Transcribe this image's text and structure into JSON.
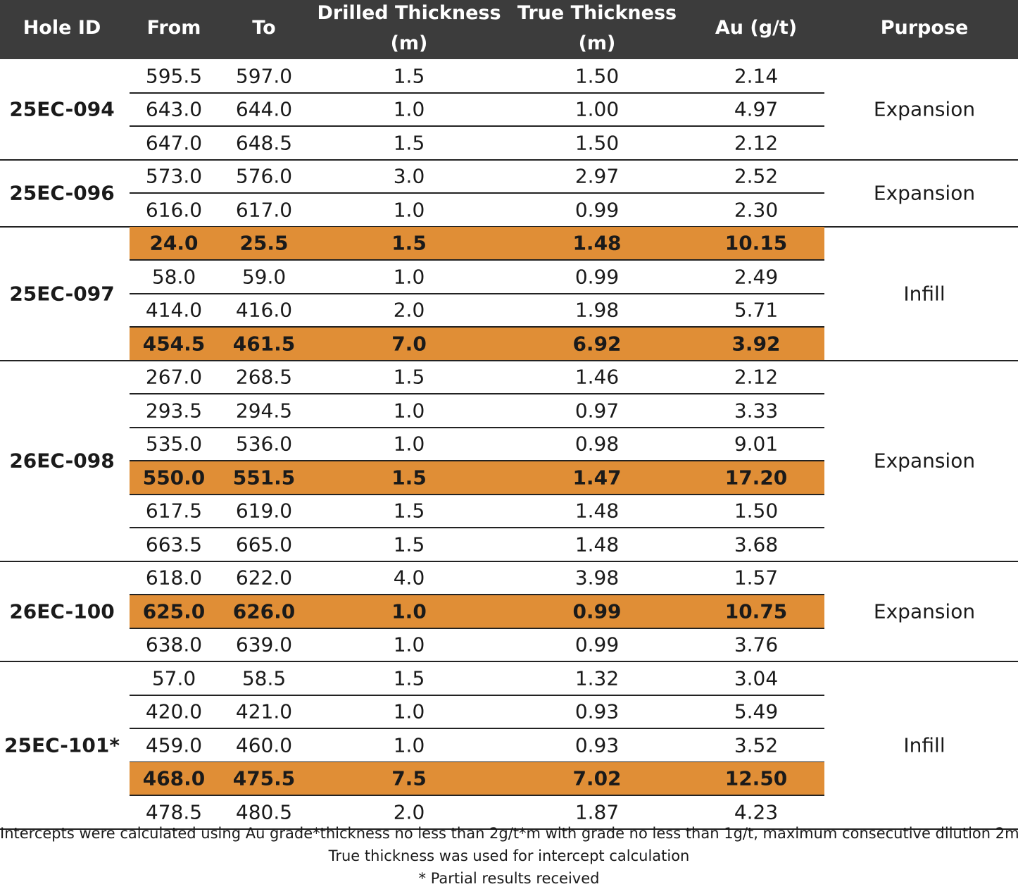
{
  "header": {
    "hole_id": "Hole ID",
    "from": "From",
    "to": "To",
    "drilled_1": "Drilled Thickness",
    "drilled_2": "(m)",
    "true_1": "True Thickness",
    "true_2": "(m)",
    "au": "Au (g/t)",
    "purpose": "Purpose"
  },
  "colors": {
    "header_bg": "#3c3c3c",
    "highlight": "#e08e36"
  },
  "groups": [
    {
      "hole": "25EC-094",
      "purpose": "Expansion",
      "rows": [
        {
          "from": "595.5",
          "to": "597.0",
          "drilled": "1.5",
          "true": "1.50",
          "au": "2.14",
          "highlight": false
        },
        {
          "from": "643.0",
          "to": "644.0",
          "drilled": "1.0",
          "true": "1.00",
          "au": "4.97",
          "highlight": false
        },
        {
          "from": "647.0",
          "to": "648.5",
          "drilled": "1.5",
          "true": "1.50",
          "au": "2.12",
          "highlight": false
        }
      ]
    },
    {
      "hole": "25EC-096",
      "purpose": "Expansion",
      "rows": [
        {
          "from": "573.0",
          "to": "576.0",
          "drilled": "3.0",
          "true": "2.97",
          "au": "2.52",
          "highlight": false
        },
        {
          "from": "616.0",
          "to": "617.0",
          "drilled": "1.0",
          "true": "0.99",
          "au": "2.30",
          "highlight": false
        }
      ]
    },
    {
      "hole": "25EC-097",
      "purpose": "Infill",
      "rows": [
        {
          "from": "24.0",
          "to": "25.5",
          "drilled": "1.5",
          "true": "1.48",
          "au": "10.15",
          "highlight": true
        },
        {
          "from": "58.0",
          "to": "59.0",
          "drilled": "1.0",
          "true": "0.99",
          "au": "2.49",
          "highlight": false
        },
        {
          "from": "414.0",
          "to": "416.0",
          "drilled": "2.0",
          "true": "1.98",
          "au": "5.71",
          "highlight": false
        },
        {
          "from": "454.5",
          "to": "461.5",
          "drilled": "7.0",
          "true": "6.92",
          "au": "3.92",
          "highlight": true
        }
      ]
    },
    {
      "hole": "26EC-098",
      "purpose": "Expansion",
      "rows": [
        {
          "from": "267.0",
          "to": "268.5",
          "drilled": "1.5",
          "true": "1.46",
          "au": "2.12",
          "highlight": false
        },
        {
          "from": "293.5",
          "to": "294.5",
          "drilled": "1.0",
          "true": "0.97",
          "au": "3.33",
          "highlight": false
        },
        {
          "from": "535.0",
          "to": "536.0",
          "drilled": "1.0",
          "true": "0.98",
          "au": "9.01",
          "highlight": false
        },
        {
          "from": "550.0",
          "to": "551.5",
          "drilled": "1.5",
          "true": "1.47",
          "au": "17.20",
          "highlight": true
        },
        {
          "from": "617.5",
          "to": "619.0",
          "drilled": "1.5",
          "true": "1.48",
          "au": "1.50",
          "highlight": false
        },
        {
          "from": "663.5",
          "to": "665.0",
          "drilled": "1.5",
          "true": "1.48",
          "au": "3.68",
          "highlight": false
        }
      ]
    },
    {
      "hole": "26EC-100",
      "purpose": "Expansion",
      "rows": [
        {
          "from": "618.0",
          "to": "622.0",
          "drilled": "4.0",
          "true": "3.98",
          "au": "1.57",
          "highlight": false
        },
        {
          "from": "625.0",
          "to": "626.0",
          "drilled": "1.0",
          "true": "0.99",
          "au": "10.75",
          "highlight": true
        },
        {
          "from": "638.0",
          "to": "639.0",
          "drilled": "1.0",
          "true": "0.99",
          "au": "3.76",
          "highlight": false
        }
      ]
    },
    {
      "hole": "25EC-101*",
      "purpose": "Infill",
      "rows": [
        {
          "from": "57.0",
          "to": "58.5",
          "drilled": "1.5",
          "true": "1.32",
          "au": "3.04",
          "highlight": false
        },
        {
          "from": "420.0",
          "to": "421.0",
          "drilled": "1.0",
          "true": "0.93",
          "au": "5.49",
          "highlight": false
        },
        {
          "from": "459.0",
          "to": "460.0",
          "drilled": "1.0",
          "true": "0.93",
          "au": "3.52",
          "highlight": false
        },
        {
          "from": "468.0",
          "to": "475.5",
          "drilled": "7.5",
          "true": "7.02",
          "au": "12.50",
          "highlight": true
        },
        {
          "from": "478.5",
          "to": "480.5",
          "drilled": "2.0",
          "true": "1.87",
          "au": "4.23",
          "highlight": false
        }
      ]
    }
  ],
  "footnotes": [
    "Intercepts were calculated using Au grade*thickness no less than 2g/t*m with grade no less than 1g/t, maximum consecutive dilution 2m.",
    "True thickness was used for intercept calculation",
    "* Partial results received"
  ]
}
